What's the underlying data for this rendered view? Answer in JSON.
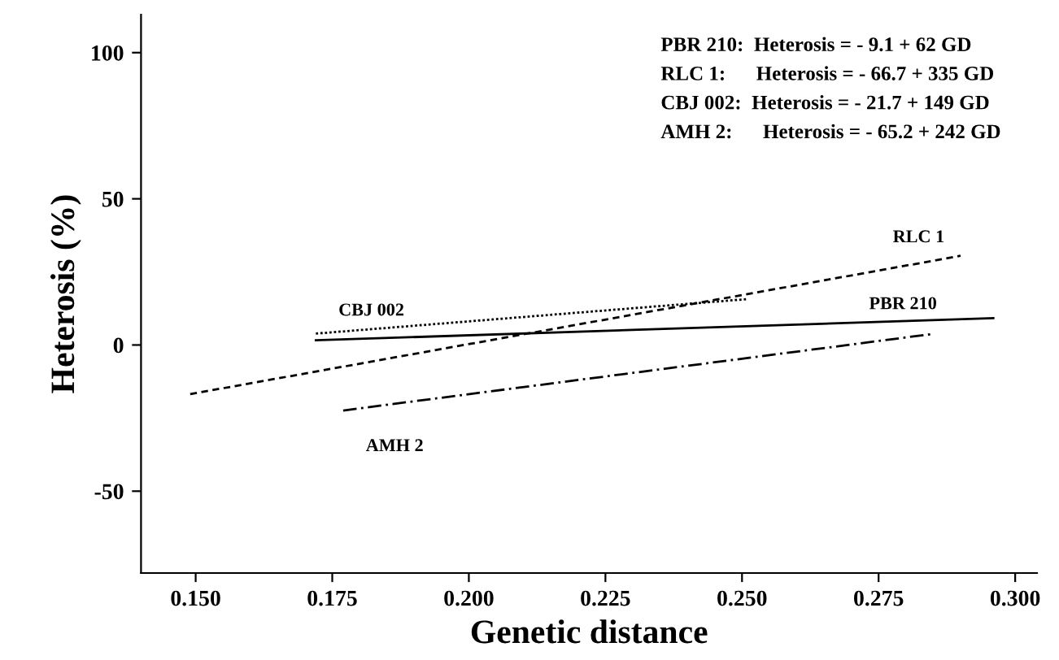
{
  "chart_data": {
    "type": "line",
    "xlabel": "Genetic distance",
    "ylabel": "Heterosis (%)",
    "xlim": [
      0.14,
      0.304
    ],
    "ylim": [
      -78,
      113
    ],
    "xticks": [
      {
        "value": 0.15,
        "label": "0.150"
      },
      {
        "value": 0.175,
        "label": "0.175"
      },
      {
        "value": 0.2,
        "label": "0.200"
      },
      {
        "value": 0.225,
        "label": "0.225"
      },
      {
        "value": 0.25,
        "label": "0.250"
      },
      {
        "value": 0.275,
        "label": "0.275"
      },
      {
        "value": 0.3,
        "label": "0.300"
      }
    ],
    "yticks": [
      -50,
      0,
      50,
      100
    ],
    "grid": false,
    "legend": false,
    "marker": "none",
    "series": [
      {
        "name": "PBR 210",
        "color": "#000000",
        "line_style": "solid",
        "x": [
          0.172,
          0.296
        ],
        "values": [
          1.6,
          9.2
        ]
      },
      {
        "name": "RLC 1",
        "color": "#000000",
        "line_style": "dashed",
        "x": [
          0.149,
          0.29
        ],
        "values": [
          -16.8,
          30.5
        ]
      },
      {
        "name": "CBJ 002",
        "color": "#000000",
        "line_style": "dotted",
        "x": [
          0.172,
          0.251
        ],
        "values": [
          3.9,
          15.7
        ]
      },
      {
        "name": "AMH 2",
        "color": "#000000",
        "line_style": "dashdot",
        "x": [
          0.177,
          0.285
        ],
        "values": [
          -22.4,
          3.8
        ]
      }
    ],
    "annotations": [
      "PBR 210:  Heterosis = - 9.1 + 62 GD",
      "RLC 1:      Heterosis = - 66.7 + 335 GD",
      "CBJ 002:  Heterosis = - 21.7 + 149 GD",
      "AMH 2:      Heterosis = - 65.2 + 242 GD"
    ]
  }
}
